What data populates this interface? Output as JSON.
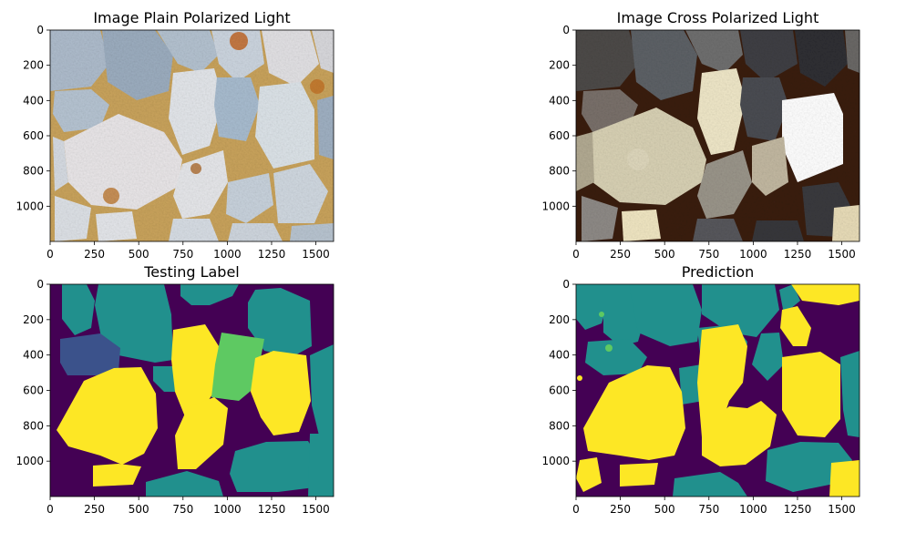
{
  "chart_data": [
    {
      "type": "heatmap",
      "title": "Image Plain Polarized Light",
      "xlim": [
        0,
        1600
      ],
      "ylim": [
        1200,
        0
      ],
      "xticks": [
        0,
        250,
        500,
        750,
        1000,
        1250,
        1500
      ],
      "yticks": [
        0,
        200,
        400,
        600,
        800,
        1000
      ],
      "image": "plain-polarized-thin-section-micrograph"
    },
    {
      "type": "heatmap",
      "title": "Image Cross Polarized Light",
      "xlim": [
        0,
        1600
      ],
      "ylim": [
        1200,
        0
      ],
      "xticks": [
        0,
        250,
        500,
        750,
        1000,
        1250,
        1500
      ],
      "yticks": [
        0,
        200,
        400,
        600,
        800,
        1000
      ],
      "image": "cross-polarized-thin-section-micrograph"
    },
    {
      "type": "heatmap",
      "title": "Testing Label",
      "xlim": [
        0,
        1600
      ],
      "ylim": [
        1200,
        0
      ],
      "xticks": [
        0,
        250,
        500,
        750,
        1000,
        1250,
        1500
      ],
      "yticks": [
        0,
        200,
        400,
        600,
        800,
        1000
      ],
      "image": "segmentation-label-mask",
      "class_colors": [
        "#440154",
        "#3b528b",
        "#21908d",
        "#5ec962",
        "#fde725"
      ]
    },
    {
      "type": "heatmap",
      "title": "Prediction",
      "xlim": [
        0,
        1600
      ],
      "ylim": [
        1200,
        0
      ],
      "xticks": [
        0,
        250,
        500,
        750,
        1000,
        1250,
        1500
      ],
      "yticks": [
        0,
        200,
        400,
        600,
        800,
        1000
      ],
      "image": "segmentation-prediction-mask",
      "class_colors": [
        "#440154",
        "#3b528b",
        "#21908d",
        "#5ec962",
        "#fde725"
      ]
    }
  ]
}
